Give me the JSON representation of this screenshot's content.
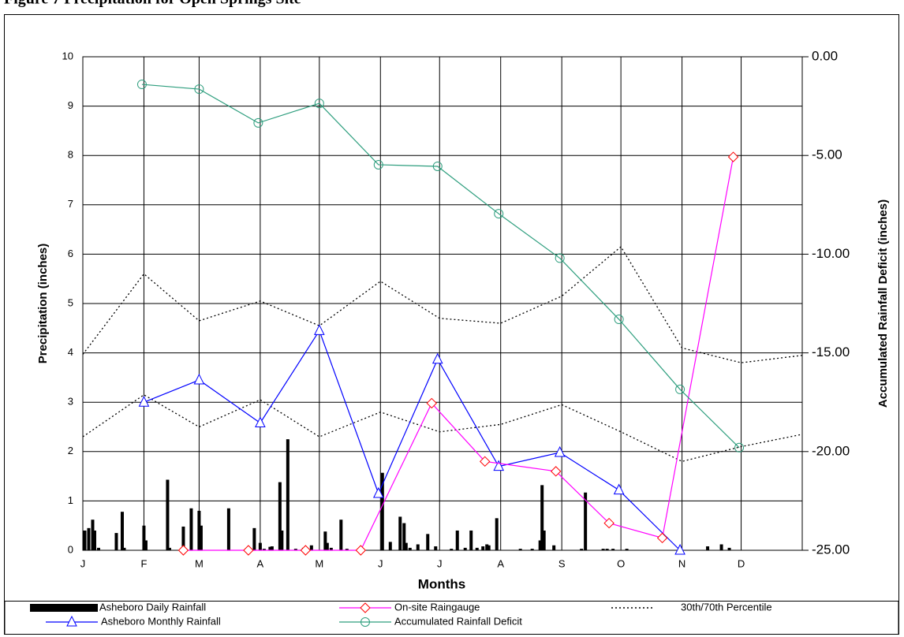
{
  "chart_data": {
    "type": "combo",
    "title": "Figure 7 Precipitation for Open Springs Site",
    "x_label": "Months",
    "y_label": "Precipitation (inches)",
    "y2_label": "Accumulated Rainfall Deficit (inches)",
    "xlim": [
      0,
      365
    ],
    "xticks": [
      {
        "value": 0,
        "label": "J"
      },
      {
        "value": 31,
        "label": "F"
      },
      {
        "value": 59,
        "label": "M"
      },
      {
        "value": 90,
        "label": "A"
      },
      {
        "value": 120,
        "label": "M"
      },
      {
        "value": 151,
        "label": "J"
      },
      {
        "value": 181,
        "label": "J"
      },
      {
        "value": 212,
        "label": "A"
      },
      {
        "value": 243,
        "label": "S"
      },
      {
        "value": 273,
        "label": "O"
      },
      {
        "value": 304,
        "label": "N"
      },
      {
        "value": 334,
        "label": "D"
      }
    ],
    "ylim": [
      0,
      10
    ],
    "yticks": [
      0,
      1,
      2,
      3,
      4,
      5,
      6,
      7,
      8,
      9,
      10
    ],
    "y2lim": [
      -25,
      0
    ],
    "y2ticks": [
      {
        "value": 0,
        "label": "0.00"
      },
      {
        "value": -5,
        "label": "-5.00"
      },
      {
        "value": -10,
        "label": "-10.00"
      },
      {
        "value": -15,
        "label": "-15.00"
      },
      {
        "value": -20,
        "label": "-20.00"
      },
      {
        "value": -25,
        "label": "-25.00"
      }
    ],
    "grid": true,
    "daily": {
      "name": "Asheboro Daily Rainfall",
      "color": "#000000",
      "x": [
        1,
        3,
        5,
        6,
        8,
        17,
        20,
        21,
        31,
        32,
        43,
        44,
        51,
        55,
        59,
        60,
        74,
        87,
        90,
        92,
        95,
        96,
        100,
        101,
        104,
        108,
        112,
        116,
        123,
        124,
        126,
        131,
        134,
        152,
        156,
        161,
        163,
        164,
        166,
        170,
        175,
        179,
        187,
        190,
        194,
        197,
        200,
        203,
        205,
        206,
        210,
        222,
        228,
        232,
        233,
        234,
        239,
        253,
        255,
        264,
        266,
        269,
        276,
        317,
        324,
        328
      ],
      "values": [
        0.4,
        0.45,
        0.62,
        0.4,
        0.05,
        0.35,
        0.78,
        0.05,
        0.5,
        0.2,
        1.43,
        0.05,
        0.48,
        0.85,
        0.8,
        0.5,
        0.85,
        0.45,
        0.15,
        0.03,
        0.07,
        0.08,
        1.38,
        0.4,
        2.25,
        0.03,
        0.05,
        0.1,
        0.38,
        0.15,
        0.05,
        0.62,
        0.03,
        1.57,
        0.17,
        0.68,
        0.55,
        0.15,
        0.05,
        0.12,
        0.33,
        0.08,
        0.03,
        0.4,
        0.05,
        0.4,
        0.05,
        0.08,
        0.12,
        0.1,
        0.65,
        0.03,
        0.03,
        0.2,
        1.32,
        0.4,
        0.1,
        0.03,
        1.17,
        0.03,
        0.03,
        0.03,
        0.03,
        0.08,
        0.12,
        0.05
      ]
    },
    "percentiles": {
      "name": "30th/70th Percentile",
      "color": "#000000",
      "x": [
        0,
        31,
        59,
        90,
        120,
        151,
        181,
        212,
        243,
        273,
        304,
        334,
        365
      ],
      "p30": [
        2.3,
        3.15,
        2.5,
        3.05,
        2.3,
        2.8,
        2.4,
        2.55,
        2.95,
        2.4,
        1.8,
        2.1,
        2.35
      ],
      "p70": [
        3.97,
        5.6,
        4.65,
        5.05,
        4.55,
        5.45,
        4.7,
        4.6,
        5.15,
        6.15,
        4.1,
        3.8,
        3.95
      ]
    },
    "series": [
      {
        "name": "Asheboro Monthly Rainfall",
        "color": "#0000ff",
        "marker": "triangle",
        "marker_color": "#0000ff",
        "x": [
          31,
          59,
          90,
          120,
          150,
          180,
          211,
          242,
          272,
          303
        ],
        "values": [
          3.0,
          3.45,
          2.58,
          4.45,
          1.15,
          3.87,
          1.7,
          1.98,
          1.22,
          0.0
        ]
      },
      {
        "name": "On-site Raingauge",
        "color": "#ff00ff",
        "marker": "diamond",
        "marker_color": "#ff0000",
        "x": [
          51,
          84,
          113,
          141,
          177,
          204,
          240,
          267,
          294,
          330
        ],
        "values": [
          0,
          0,
          0,
          0,
          2.98,
          1.8,
          1.6,
          0.55,
          0.25,
          7.97
        ]
      },
      {
        "name": "Accumulated Rainfall Deficit",
        "color": "#2e9e7e",
        "marker": "circle",
        "marker_color": "#2e9e7e",
        "axis": "y2",
        "x": [
          30,
          59,
          89,
          120,
          150,
          180,
          211,
          242,
          272,
          303,
          333
        ],
        "values": [
          -1.4,
          -1.64,
          -3.35,
          -2.36,
          -5.47,
          -5.55,
          -7.95,
          -10.2,
          -13.3,
          -16.85,
          -19.8
        ]
      }
    ]
  }
}
